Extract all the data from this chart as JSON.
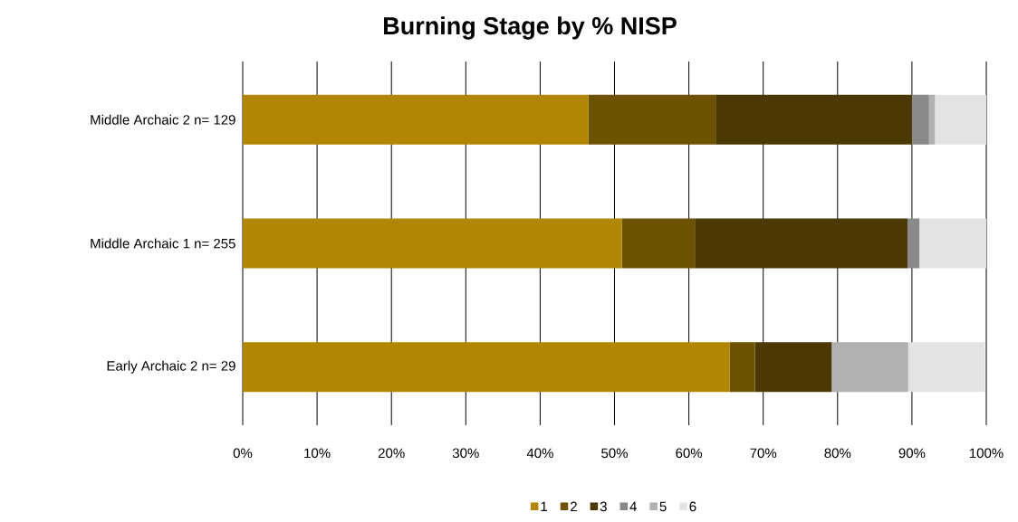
{
  "chart_data": {
    "type": "bar",
    "title": "Burning Stage by % NISP",
    "orientation": "horizontal",
    "stacked": true,
    "categories": [
      "Middle Archaic 2 n= 129",
      "Middle Archaic 1 n= 255",
      "Early Archaic 2 n= 29"
    ],
    "series": [
      {
        "name": "1",
        "color": "#b08602",
        "values": [
          46.5,
          51.0,
          65.5
        ]
      },
      {
        "name": "2",
        "color": "#6c5201",
        "values": [
          17.1,
          9.8,
          3.4
        ]
      },
      {
        "name": "3",
        "color": "#4b3803",
        "values": [
          26.4,
          28.6,
          10.3
        ]
      },
      {
        "name": "4",
        "color": "#898989",
        "values": [
          2.3,
          1.6,
          0
        ]
      },
      {
        "name": "5",
        "color": "#b1b1b1",
        "values": [
          0.8,
          0,
          10.3
        ]
      },
      {
        "name": "6",
        "color": "#e3e3e3",
        "values": [
          7.0,
          9.0,
          10.3
        ]
      }
    ],
    "xlim": [
      0,
      100
    ],
    "xticks": [
      {
        "value": 0,
        "label": "0%"
      },
      {
        "value": 10,
        "label": "10%"
      },
      {
        "value": 20,
        "label": "20%"
      },
      {
        "value": 30,
        "label": "30%"
      },
      {
        "value": 40,
        "label": "40%"
      },
      {
        "value": 50,
        "label": "50%"
      },
      {
        "value": 60,
        "label": "60%"
      },
      {
        "value": 70,
        "label": "70%"
      },
      {
        "value": 80,
        "label": "80%"
      },
      {
        "value": 90,
        "label": "90%"
      },
      {
        "value": 100,
        "label": "100%"
      }
    ],
    "grid": "x",
    "legend": "bottom"
  }
}
